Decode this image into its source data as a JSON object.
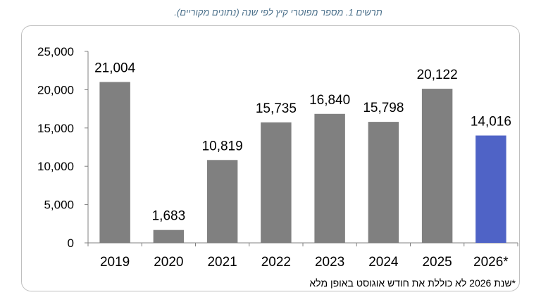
{
  "caption": "תרשים 1. מספר מפוטרי קיץ לפי שנה (נתונים מקוריים).",
  "footnote": "*שנת 2026 לא כוללת את חודש אוגוסט באופן מלא",
  "colors": {
    "bar": "#808080",
    "highlight": "#4f63c6"
  },
  "chart_data": {
    "type": "bar",
    "categories": [
      "2019",
      "2020",
      "2021",
      "2022",
      "2023",
      "2024",
      "2025",
      "2026*"
    ],
    "values": [
      21004,
      1683,
      10819,
      15735,
      16840,
      15798,
      20122,
      14016
    ],
    "value_labels": [
      "21,004",
      "1,683",
      "10,819",
      "15,735",
      "16,840",
      "15,798",
      "20,122",
      "14,016"
    ],
    "highlight_category": "2026*",
    "ylim": [
      0,
      25000
    ],
    "yticks": [
      0,
      5000,
      10000,
      15000,
      20000,
      25000
    ],
    "ytick_labels": [
      "0",
      "5,000",
      "10,000",
      "15,000",
      "20,000",
      "25,000"
    ],
    "grid": false,
    "legend": "none"
  }
}
